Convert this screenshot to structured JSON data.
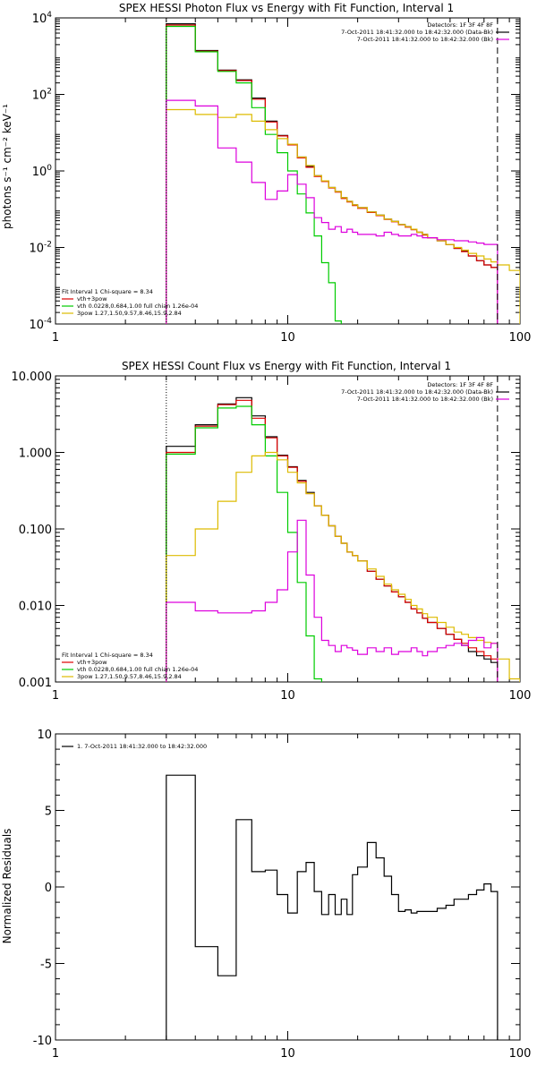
{
  "chart_data": [
    {
      "type": "line",
      "title": "SPEX HESSI Photon Flux vs Energy with Fit Function, Interval 1",
      "xlabel": "",
      "ylabel": "photons s⁻¹ cm⁻² keV⁻¹",
      "xscale": "log",
      "yscale": "log",
      "xlim": [
        1,
        100
      ],
      "ylim": [
        0.0001,
        10000
      ],
      "xticks": [
        "1",
        "10",
        "100"
      ],
      "yticks": [
        {
          "base": "10",
          "exp": "-4",
          "v": 0.0001
        },
        {
          "base": "10",
          "exp": "-2",
          "v": 0.01
        },
        {
          "base": "10",
          "exp": "0",
          "v": 1
        },
        {
          "base": "10",
          "exp": "2",
          "v": 100
        },
        {
          "base": "10",
          "exp": "4",
          "v": 10000
        }
      ],
      "vlines": [
        {
          "x": 3,
          "style": "dotted"
        },
        {
          "x": 80,
          "style": "dashed"
        }
      ],
      "header_lines": [
        "Detectors: 1F 3F 4F 8F",
        "7-Oct-2011 18:41:32.000 to 18:42:32.000 (Data-Bk)",
        "7-Oct-2011 18:41:32.000 to 18:42:32.000 (Bk)"
      ],
      "header_colors": [
        "",
        "#000000",
        "#dd00dd"
      ],
      "legend_lines": [
        "Fit Interval  1    Chi-square = 8.34",
        "vth+3pow",
        "vth 0.0228,0.684,1.00  full chian 1.26e-04",
        "3pow 1.27,1.50,9.57,8.46,15.9,2.84"
      ],
      "legend_colors": [
        "",
        "#dd0000",
        "#00cc00",
        "#ddbb00"
      ],
      "series": [
        {
          "color": "#000000",
          "kind": "step",
          "edges": [
            3,
            4,
            5,
            6,
            7,
            8,
            9,
            10,
            11,
            12,
            13,
            14,
            15,
            16,
            17,
            18,
            19,
            20,
            22,
            24,
            26,
            28,
            30,
            32,
            34,
            36,
            38,
            40,
            44,
            48,
            52,
            56,
            60,
            65,
            70,
            75,
            80
          ],
          "values": [
            7000,
            1400,
            430,
            240,
            80,
            20,
            8.5,
            5,
            2.3,
            1.3,
            0.75,
            0.55,
            0.37,
            0.29,
            0.2,
            0.16,
            0.13,
            0.11,
            0.085,
            0.07,
            0.055,
            0.048,
            0.04,
            0.035,
            0.03,
            0.025,
            0.022,
            0.018,
            0.015,
            0.012,
            0.0095,
            0.008,
            0.006,
            0.0045,
            0.0035,
            0.003
          ]
        },
        {
          "color": "#dd0000",
          "kind": "step",
          "edges": [
            3,
            4,
            5,
            6,
            7,
            8,
            9,
            10,
            11,
            12,
            13,
            14,
            15,
            16,
            17,
            18,
            19,
            20,
            22,
            24,
            26,
            28,
            30,
            32,
            34,
            36,
            38,
            40,
            44,
            48,
            52,
            56,
            60,
            65,
            70,
            75,
            80
          ],
          "values": [
            6500,
            1350,
            420,
            230,
            75,
            19,
            8.2,
            4.8,
            2.2,
            1.25,
            0.72,
            0.53,
            0.36,
            0.28,
            0.19,
            0.155,
            0.125,
            0.105,
            0.082,
            0.068,
            0.054,
            0.047,
            0.039,
            0.034,
            0.029,
            0.025,
            0.021,
            0.018,
            0.015,
            0.012,
            0.0095,
            0.0078,
            0.006,
            0.0045,
            0.0035,
            0.003
          ]
        },
        {
          "color": "#00cc00",
          "kind": "step",
          "edges": [
            3,
            4,
            5,
            6,
            7,
            8,
            9,
            10,
            11,
            12,
            13,
            14,
            15,
            16,
            17
          ],
          "values": [
            6000,
            1300,
            400,
            200,
            45,
            9,
            3,
            1,
            0.25,
            0.08,
            0.02,
            0.004,
            0.0012,
            0.00012
          ]
        },
        {
          "color": "#ddbb00",
          "kind": "step",
          "edges": [
            3,
            4,
            5,
            6,
            7,
            8,
            9,
            10,
            11,
            12,
            13,
            14,
            15,
            16,
            17,
            18,
            19,
            20,
            22,
            24,
            26,
            28,
            30,
            32,
            34,
            36,
            38,
            40,
            44,
            48,
            52,
            56,
            60,
            65,
            70,
            75,
            80,
            90,
            100
          ],
          "values": [
            40,
            30,
            25,
            30,
            20,
            12,
            7,
            5,
            2.3,
            1.4,
            0.75,
            0.55,
            0.37,
            0.29,
            0.2,
            0.16,
            0.13,
            0.11,
            0.085,
            0.07,
            0.055,
            0.048,
            0.04,
            0.035,
            0.03,
            0.025,
            0.022,
            0.018,
            0.015,
            0.012,
            0.01,
            0.0085,
            0.007,
            0.006,
            0.005,
            0.0042,
            0.0035,
            0.0025
          ]
        },
        {
          "color": "#dd00dd",
          "kind": "step",
          "edges": [
            3,
            4,
            5,
            6,
            7,
            8,
            9,
            10,
            11,
            12,
            13,
            14,
            15,
            16,
            17,
            18,
            19,
            20,
            22,
            24,
            26,
            28,
            30,
            32,
            34,
            36,
            38,
            40,
            44,
            48,
            52,
            56,
            60,
            65,
            70,
            75,
            80
          ],
          "values": [
            70,
            50,
            4,
            1.7,
            0.5,
            0.18,
            0.3,
            0.8,
            0.45,
            0.2,
            0.06,
            0.045,
            0.03,
            0.035,
            0.025,
            0.03,
            0.025,
            0.022,
            0.022,
            0.02,
            0.025,
            0.022,
            0.02,
            0.02,
            0.022,
            0.02,
            0.018,
            0.018,
            0.016,
            0.016,
            0.015,
            0.015,
            0.014,
            0.013,
            0.012,
            0.012
          ]
        }
      ]
    },
    {
      "type": "line",
      "title": "SPEX HESSI Count Flux vs Energy with Fit Function, Interval 1",
      "xlabel": "",
      "ylabel": "",
      "xscale": "log",
      "yscale": "log",
      "xlim": [
        1,
        100
      ],
      "ylim": [
        0.001,
        10
      ],
      "xticks": [
        "1",
        "10",
        "100"
      ],
      "yticks": [
        {
          "label": "0.001",
          "v": 0.001
        },
        {
          "label": "0.010",
          "v": 0.01
        },
        {
          "label": "0.100",
          "v": 0.1
        },
        {
          "label": "1.000",
          "v": 1
        },
        {
          "label": "10.000",
          "v": 10
        }
      ],
      "vlines": [
        {
          "x": 3,
          "style": "dotted"
        },
        {
          "x": 80,
          "style": "dashed"
        }
      ],
      "header_lines": [
        "Detectors: 1F 3F 4F 8F",
        "7-Oct-2011 18:41:32.000 to 18:42:32.000 (Data-Bk)",
        "7-Oct-2011 18:41:32.000 to 18:42:32.000 (Bk)"
      ],
      "header_colors": [
        "",
        "#000000",
        "#dd00dd"
      ],
      "legend_lines": [
        "Fit Interval  1    Chi-square = 8.34",
        "vth+3pow",
        "vth 0.0228,0.684,1.00  full chian 1.26e-04",
        "3pow 1.27,1.50,9.57,8.46,15.9,2.84"
      ],
      "legend_colors": [
        "",
        "#dd0000",
        "#00cc00",
        "#ddbb00"
      ],
      "series": [
        {
          "color": "#000000",
          "kind": "step",
          "edges": [
            3,
            4,
            5,
            6,
            7,
            8,
            9,
            10,
            11,
            12,
            13,
            14,
            15,
            16,
            17,
            18,
            19,
            20,
            22,
            24,
            26,
            28,
            30,
            32,
            34,
            36,
            38,
            40,
            44,
            48,
            52,
            56,
            60,
            65,
            70,
            75,
            80
          ],
          "values": [
            1.2,
            2.3,
            4.3,
            5.2,
            3,
            1.6,
            0.92,
            0.65,
            0.43,
            0.3,
            0.2,
            0.15,
            0.11,
            0.08,
            0.065,
            0.05,
            0.045,
            0.038,
            0.028,
            0.022,
            0.018,
            0.015,
            0.013,
            0.011,
            0.009,
            0.008,
            0.0068,
            0.006,
            0.005,
            0.0042,
            0.0036,
            0.003,
            0.0025,
            0.0022,
            0.002,
            0.0018
          ]
        },
        {
          "color": "#dd0000",
          "kind": "step",
          "edges": [
            3,
            4,
            5,
            6,
            7,
            8,
            9,
            10,
            11,
            12,
            13,
            14,
            15,
            16,
            17,
            18,
            19,
            20,
            22,
            24,
            26,
            28,
            30,
            32,
            34,
            36,
            38,
            40,
            44,
            48,
            52,
            56,
            60,
            65,
            70,
            75,
            80
          ],
          "values": [
            1,
            2.2,
            4.2,
            4.8,
            2.8,
            1.55,
            0.9,
            0.64,
            0.42,
            0.29,
            0.2,
            0.15,
            0.11,
            0.08,
            0.065,
            0.05,
            0.045,
            0.038,
            0.028,
            0.022,
            0.018,
            0.015,
            0.013,
            0.011,
            0.009,
            0.008,
            0.0068,
            0.006,
            0.005,
            0.0042,
            0.0036,
            0.0032,
            0.0028,
            0.0025,
            0.0022,
            0.002
          ]
        },
        {
          "color": "#00cc00",
          "kind": "step",
          "edges": [
            3,
            4,
            5,
            6,
            7,
            8,
            9,
            10,
            11,
            12,
            13,
            14
          ],
          "values": [
            0.95,
            2.1,
            3.8,
            4,
            2.3,
            0.9,
            0.3,
            0.09,
            0.02,
            0.004,
            0.0011
          ]
        },
        {
          "color": "#ddbb00",
          "kind": "step",
          "edges": [
            3,
            4,
            5,
            6,
            7,
            8,
            9,
            10,
            11,
            12,
            13,
            14,
            15,
            16,
            17,
            18,
            19,
            20,
            22,
            24,
            26,
            28,
            30,
            32,
            34,
            36,
            38,
            40,
            44,
            48,
            52,
            56,
            60,
            65,
            70,
            75,
            80,
            90,
            100
          ],
          "values": [
            0.045,
            0.1,
            0.23,
            0.55,
            0.9,
            1,
            0.8,
            0.55,
            0.4,
            0.29,
            0.2,
            0.15,
            0.11,
            0.08,
            0.065,
            0.05,
            0.045,
            0.038,
            0.03,
            0.024,
            0.019,
            0.016,
            0.014,
            0.012,
            0.01,
            0.009,
            0.0078,
            0.007,
            0.006,
            0.0052,
            0.0045,
            0.0042,
            0.0038,
            0.0035,
            0.0033,
            0.0032,
            0.002,
            0.0011
          ]
        },
        {
          "color": "#dd00dd",
          "kind": "step",
          "edges": [
            3,
            4,
            5,
            6,
            7,
            8,
            9,
            10,
            11,
            12,
            13,
            14,
            15,
            16,
            17,
            18,
            19,
            20,
            22,
            24,
            26,
            28,
            30,
            32,
            34,
            36,
            38,
            40,
            44,
            48,
            52,
            56,
            60,
            65,
            70,
            75,
            80
          ],
          "values": [
            0.011,
            0.0085,
            0.008,
            0.008,
            0.0085,
            0.011,
            0.016,
            0.05,
            0.13,
            0.025,
            0.007,
            0.0035,
            0.003,
            0.0025,
            0.003,
            0.0028,
            0.0026,
            0.0023,
            0.0028,
            0.0025,
            0.0028,
            0.0023,
            0.0025,
            0.0025,
            0.0028,
            0.0025,
            0.0022,
            0.0025,
            0.0028,
            0.003,
            0.0032,
            0.003,
            0.0035,
            0.0038,
            0.0028,
            0.0032
          ]
        }
      ]
    },
    {
      "type": "line",
      "title": "",
      "xlabel": "",
      "ylabel": "Normalized Residuals",
      "xscale": "log",
      "yscale": "linear",
      "xlim": [
        1,
        100
      ],
      "ylim": [
        -10,
        10
      ],
      "xticks": [
        "1",
        "10",
        "100"
      ],
      "yticks": [
        {
          "label": "-10",
          "v": -10
        },
        {
          "label": "-5",
          "v": -5
        },
        {
          "label": "0",
          "v": 0
        },
        {
          "label": "5",
          "v": 5
        },
        {
          "label": "10",
          "v": 10
        }
      ],
      "legend_lines": [
        "1.  7-Oct-2011 18:41:32.000 to 18:42:32.000"
      ],
      "legend_colors": [
        "#000000"
      ],
      "series": [
        {
          "color": "#000000",
          "kind": "step",
          "edges": [
            3,
            4,
            5,
            6,
            7,
            8,
            9,
            10,
            11,
            12,
            13,
            14,
            15,
            16,
            17,
            18,
            19,
            20,
            22,
            24,
            26,
            28,
            30,
            32,
            34,
            36,
            38,
            40,
            44,
            48,
            52,
            56,
            60,
            65,
            70,
            75,
            80
          ],
          "values": [
            7.3,
            -3.9,
            -5.8,
            4.4,
            1,
            1.1,
            -0.5,
            -1.7,
            1,
            1.6,
            -0.3,
            -1.8,
            -0.5,
            -1.8,
            -0.8,
            -1.8,
            0.8,
            1.3,
            2.9,
            1.9,
            0.7,
            -0.5,
            -1.6,
            -1.5,
            -1.7,
            -1.6,
            -1.6,
            -1.6,
            -1.4,
            -1.2,
            -0.8,
            -0.8,
            -0.5,
            -0.2,
            0.2,
            -0.3
          ]
        }
      ]
    }
  ]
}
